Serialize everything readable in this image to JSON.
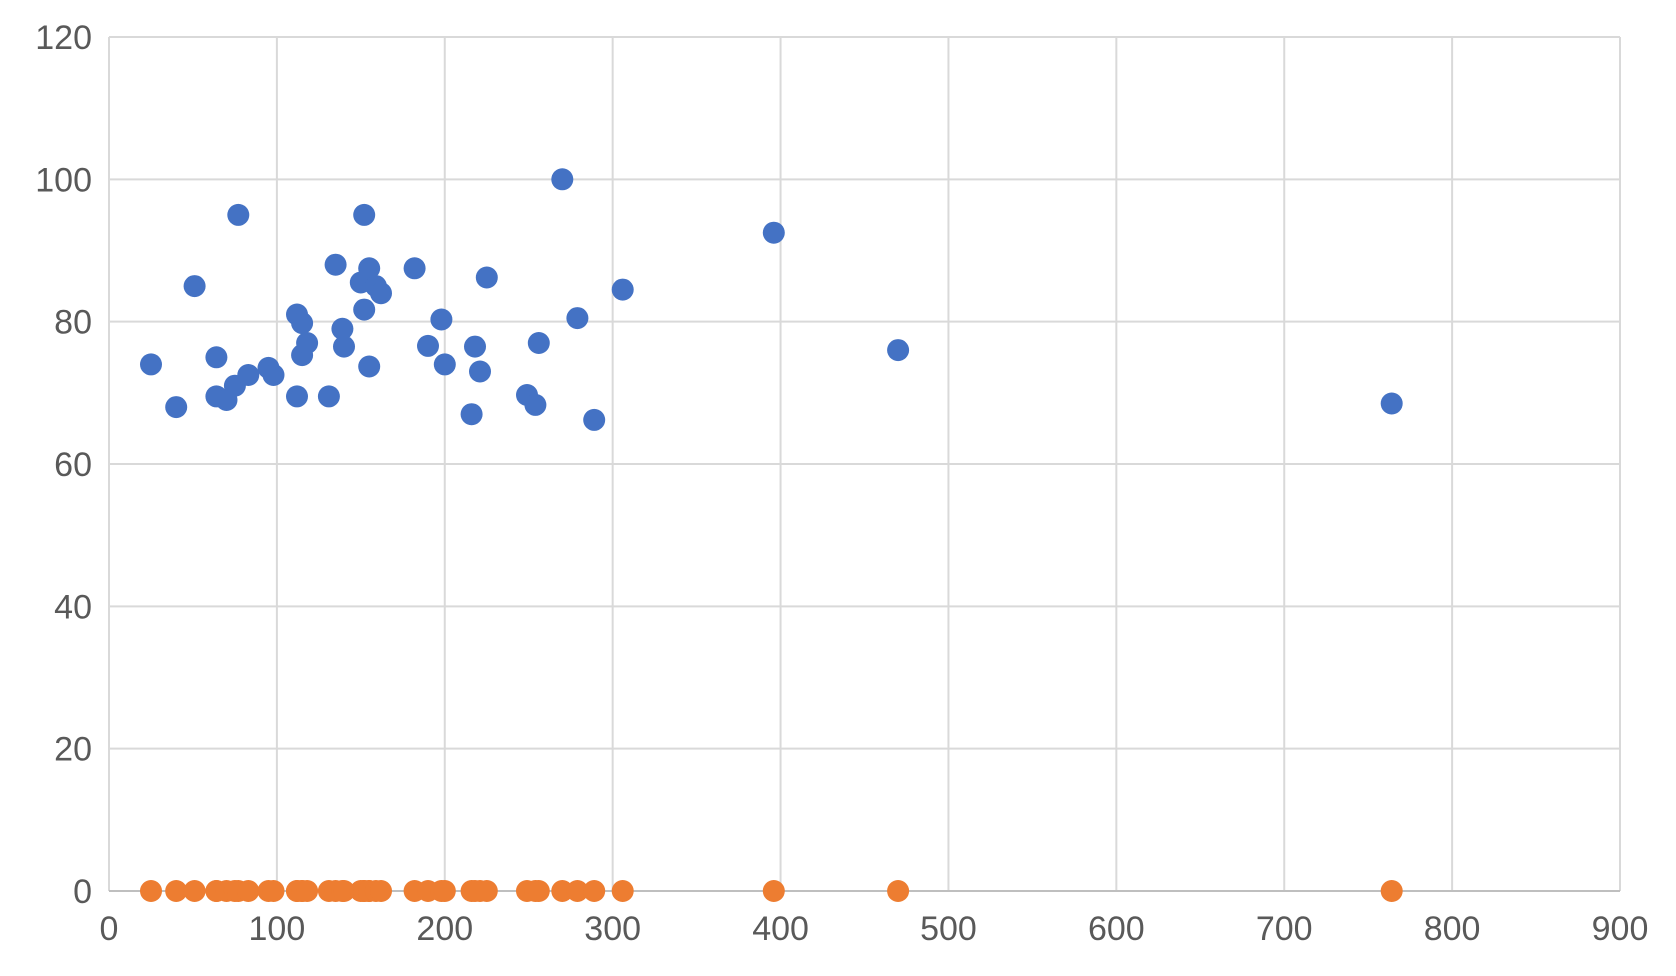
{
  "chart_data": {
    "type": "scatter",
    "title": "",
    "xlabel": "",
    "ylabel": "",
    "xlim": [
      0,
      900
    ],
    "ylim": [
      0,
      120
    ],
    "x_ticks": [
      0,
      100,
      200,
      300,
      400,
      500,
      600,
      700,
      800,
      900
    ],
    "y_ticks": [
      0,
      20,
      40,
      60,
      80,
      100,
      120
    ],
    "grid": true,
    "legend": "none",
    "colors": {
      "series1": "#4472C4",
      "series2": "#ED7D31",
      "gridline": "#D9D9D9",
      "axis_line": "#BFBFBF",
      "tick_label": "#595959",
      "background": "#FFFFFF"
    },
    "marker_radius_px": 11,
    "series": [
      {
        "name": "blue-series",
        "color": "#4472C4",
        "points": [
          [
            25,
            74
          ],
          [
            40,
            68
          ],
          [
            51,
            85
          ],
          [
            64,
            75
          ],
          [
            64,
            69.5
          ],
          [
            70,
            69
          ],
          [
            75,
            71
          ],
          [
            77,
            95
          ],
          [
            83,
            72.5
          ],
          [
            95,
            73.5
          ],
          [
            98,
            72.5
          ],
          [
            112,
            81
          ],
          [
            112,
            69.5
          ],
          [
            115,
            79.8
          ],
          [
            115,
            75.3
          ],
          [
            118,
            77
          ],
          [
            131,
            69.5
          ],
          [
            135,
            88
          ],
          [
            139,
            79
          ],
          [
            140,
            76.5
          ],
          [
            150,
            85.5
          ],
          [
            152,
            95
          ],
          [
            152,
            81.7
          ],
          [
            155,
            87.5
          ],
          [
            155,
            73.7
          ],
          [
            159,
            85
          ],
          [
            162,
            84
          ],
          [
            182,
            87.5
          ],
          [
            190,
            76.6
          ],
          [
            198,
            80.3
          ],
          [
            200,
            74
          ],
          [
            216,
            67
          ],
          [
            218,
            76.5
          ],
          [
            221,
            73
          ],
          [
            225,
            86.2
          ],
          [
            249,
            69.7
          ],
          [
            254,
            68.3
          ],
          [
            256,
            77
          ],
          [
            270,
            100
          ],
          [
            279,
            80.5
          ],
          [
            289,
            66.2
          ],
          [
            306,
            84.5
          ],
          [
            396,
            92.5
          ],
          [
            470,
            76
          ],
          [
            764,
            68.5
          ]
        ]
      },
      {
        "name": "orange-series",
        "color": "#ED7D31",
        "points": [
          [
            25,
            0
          ],
          [
            40,
            0
          ],
          [
            51,
            0
          ],
          [
            64,
            0
          ],
          [
            64,
            0
          ],
          [
            70,
            0
          ],
          [
            75,
            0
          ],
          [
            77,
            0
          ],
          [
            83,
            0
          ],
          [
            95,
            0
          ],
          [
            98,
            0
          ],
          [
            112,
            0
          ],
          [
            112,
            0
          ],
          [
            115,
            0
          ],
          [
            115,
            0
          ],
          [
            118,
            0
          ],
          [
            131,
            0
          ],
          [
            135,
            0
          ],
          [
            139,
            0
          ],
          [
            140,
            0
          ],
          [
            150,
            0
          ],
          [
            152,
            0
          ],
          [
            152,
            0
          ],
          [
            155,
            0
          ],
          [
            155,
            0
          ],
          [
            159,
            0
          ],
          [
            162,
            0
          ],
          [
            182,
            0
          ],
          [
            190,
            0
          ],
          [
            198,
            0
          ],
          [
            200,
            0
          ],
          [
            216,
            0
          ],
          [
            218,
            0
          ],
          [
            221,
            0
          ],
          [
            225,
            0
          ],
          [
            249,
            0
          ],
          [
            254,
            0
          ],
          [
            256,
            0
          ],
          [
            270,
            0
          ],
          [
            279,
            0
          ],
          [
            289,
            0
          ],
          [
            306,
            0
          ],
          [
            396,
            0
          ],
          [
            470,
            0
          ],
          [
            764,
            0
          ]
        ]
      }
    ]
  }
}
